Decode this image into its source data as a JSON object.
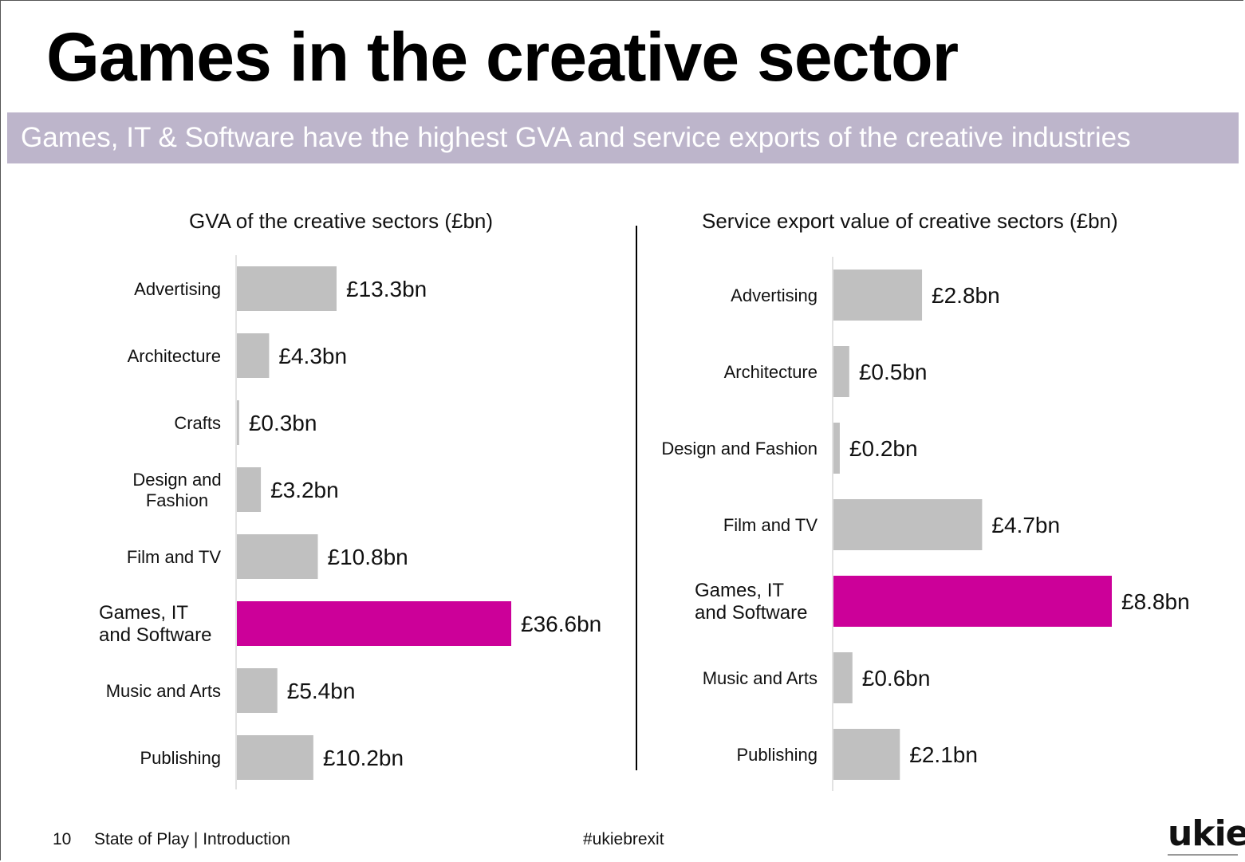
{
  "title": "Games in the creative sector",
  "banner": "Games, IT & Software have the highest GVA and service exports of the creative industries",
  "colors": {
    "bar": "#c0c0c0",
    "highlight": "#cc0099",
    "banner": "#bdb5cb"
  },
  "chart_data": [
    {
      "type": "bar",
      "orientation": "horizontal",
      "title": "GVA of the creative sectors (£bn)",
      "categories": [
        "Advertising",
        "Architecture",
        "Crafts",
        "Design and Fashion",
        "Film and TV",
        "Games, IT and Software",
        "Music and Arts",
        "Publishing"
      ],
      "display_categories": [
        [
          "Advertising"
        ],
        [
          "Architecture"
        ],
        [
          "Crafts"
        ],
        [
          "Design and",
          "Fashion"
        ],
        [
          "Film and TV"
        ],
        [
          "Games, IT",
          "and Software"
        ],
        [
          "Music and Arts"
        ],
        [
          "Publishing"
        ]
      ],
      "values": [
        13.3,
        4.3,
        0.3,
        3.2,
        10.8,
        36.6,
        5.4,
        10.2
      ],
      "labels": [
        "£13.3bn",
        "£4.3bn",
        "£0.3bn",
        "£3.2bn",
        "£10.8bn",
        "£36.6bn",
        "£5.4bn",
        "£10.2bn"
      ],
      "highlight_index": 5,
      "xlim": [
        0,
        36.6
      ],
      "grid": false,
      "legend": "none"
    },
    {
      "type": "bar",
      "orientation": "horizontal",
      "title": "Service export value of creative sectors (£bn)",
      "categories": [
        "Advertising",
        "Architecture",
        "Design and Fashion",
        "Film and TV",
        "Games, IT and Software",
        "Music and Arts",
        "Publishing"
      ],
      "display_categories": [
        [
          "Advertising"
        ],
        [
          "Architecture"
        ],
        [
          "Design and Fashion"
        ],
        [
          "Film and TV"
        ],
        [
          "Games, IT",
          "and Software"
        ],
        [
          "Music and Arts"
        ],
        [
          "Publishing"
        ]
      ],
      "values": [
        2.8,
        0.5,
        0.2,
        4.7,
        8.8,
        0.6,
        2.1
      ],
      "labels": [
        "£2.8bn",
        "£0.5bn",
        "£0.2bn",
        "£4.7bn",
        "£8.8bn",
        "£0.6bn",
        "£2.1bn"
      ],
      "highlight_index": 4,
      "xlim": [
        0,
        8.8
      ],
      "grid": false,
      "legend": "none"
    }
  ],
  "footer": {
    "page_number": "10",
    "section": "State of Play | Introduction",
    "hashtag": "#ukiebrexit",
    "logo": "ukie"
  }
}
